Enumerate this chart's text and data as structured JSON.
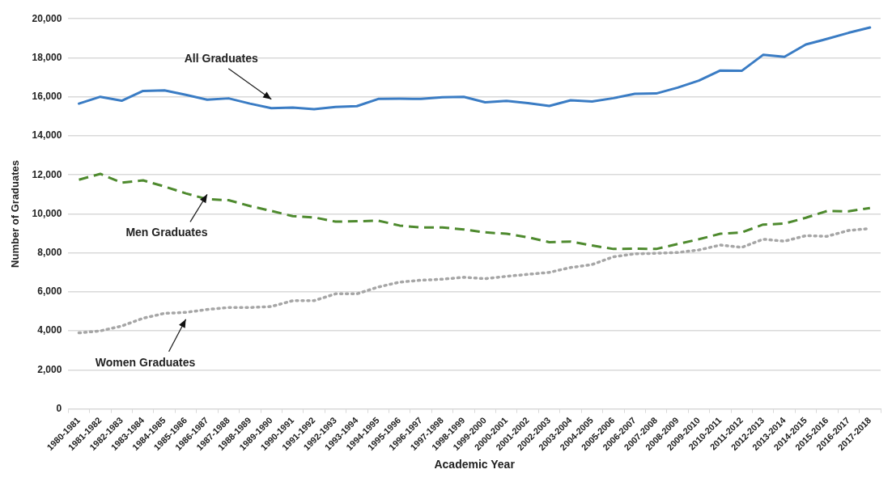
{
  "chart_data": {
    "type": "line",
    "xlabel": "Academic Year",
    "ylabel": "Number of Graduates",
    "categories": [
      "1980-1981",
      "1981-1982",
      "1982-1983",
      "1983-1984",
      "1984-1985",
      "1985-1986",
      "1986-1987",
      "1987-1988",
      "1988-1989",
      "1989-1990",
      "1990-1991",
      "1991-1992",
      "1992-1993",
      "1993-1994",
      "1994-1995",
      "1995-1996",
      "1996-1997",
      "1997-1998",
      "1998-1999",
      "1999-2000",
      "2000-2001",
      "2001-2002",
      "2002-2003",
      "2003-2004",
      "2004-2005",
      "2005-2006",
      "2006-2007",
      "2007-2008",
      "2008-2009",
      "2009-2010",
      "2010-2011",
      "2011-2012",
      "2012-2013",
      "2013-2014",
      "2014-2015",
      "2015-2016",
      "2016-2017",
      "2017-2018"
    ],
    "series": [
      {
        "name": "All Graduates",
        "color": "#3a7cc4",
        "line_style": "solid",
        "values": [
          15650,
          16000,
          15800,
          16300,
          16330,
          16100,
          15850,
          15920,
          15650,
          15420,
          15450,
          15370,
          15480,
          15520,
          15890,
          15900,
          15890,
          15980,
          16000,
          15720,
          15790,
          15680,
          15530,
          15820,
          15760,
          15930,
          16150,
          16170,
          16470,
          16830,
          17350,
          17330,
          18150,
          18050,
          18680,
          18970,
          19280,
          19550
        ]
      },
      {
        "name": "Men Graduates",
        "color": "#4e8a2e",
        "line_style": "dashed",
        "values": [
          11750,
          12050,
          11600,
          11720,
          11400,
          11050,
          10750,
          10700,
          10400,
          10150,
          9880,
          9820,
          9600,
          9620,
          9650,
          9400,
          9300,
          9300,
          9200,
          9050,
          8980,
          8800,
          8550,
          8580,
          8380,
          8200,
          8220,
          8200,
          8450,
          8700,
          8980,
          9050,
          9450,
          9500,
          9800,
          10150,
          10130,
          10300
        ]
      },
      {
        "name": "Women Graduates",
        "color": "#a6a6a6",
        "line_style": "dotted",
        "values": [
          3900,
          4000,
          4250,
          4650,
          4900,
          4950,
          5100,
          5200,
          5200,
          5250,
          5550,
          5550,
          5900,
          5900,
          6250,
          6500,
          6600,
          6650,
          6750,
          6680,
          6800,
          6900,
          7000,
          7250,
          7400,
          7800,
          7950,
          7980,
          8020,
          8150,
          8400,
          8280,
          8700,
          8600,
          8880,
          8850,
          9150,
          9250
        ]
      }
    ],
    "ylim": [
      0,
      20000
    ],
    "yticks": [
      0,
      {
        "value": 2000,
        "label": "2,000"
      },
      {
        "value": 4000,
        "label": "4,000"
      },
      {
        "value": 6000,
        "label": "6,000"
      },
      {
        "value": 8000,
        "label": "8,000"
      },
      {
        "value": 10000,
        "label": "10,000"
      },
      {
        "value": 12000,
        "label": "12,000"
      },
      {
        "value": 14000,
        "label": "14,000"
      },
      {
        "value": 16000,
        "label": "16,000"
      },
      {
        "value": 18000,
        "label": "18,000"
      },
      {
        "value": 20000,
        "label": "20,000"
      }
    ],
    "grid": "y",
    "legend": false,
    "marker": "none"
  }
}
